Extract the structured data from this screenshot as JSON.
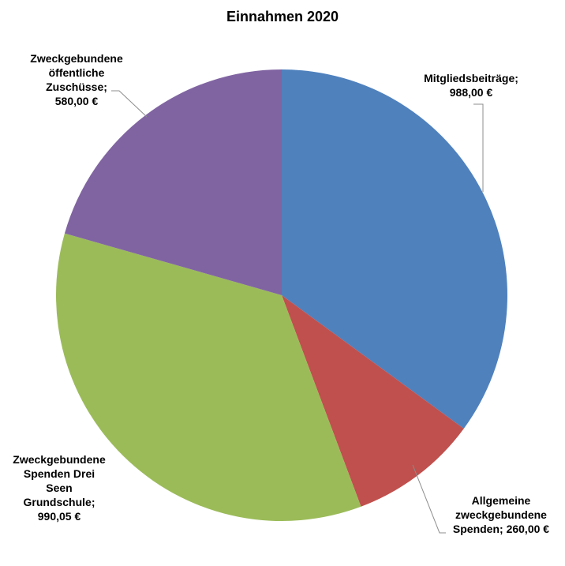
{
  "chart_data": {
    "type": "pie",
    "title": "Einnahmen 2020",
    "start_angle_deg": 0,
    "direction": "clockwise",
    "slices": [
      {
        "name": "Mitgliedsbeiträge",
        "value": 988.0,
        "value_label": "988,00 €",
        "color": "#4F81BD",
        "label_lines": [
          "Mitgliedsbeiträge;",
          "988,00 €"
        ]
      },
      {
        "name": "Allgemeine zweckgebundene Spenden",
        "value": 260.0,
        "value_label": "260,00 €",
        "color": "#C0504D",
        "label_lines": [
          "Allgemeine",
          "zweckgebundene",
          "Spenden; 260,00 €"
        ]
      },
      {
        "name": "Zweckgebundene Spenden Drei Seen Grundschule",
        "value": 990.05,
        "value_label": "990,05 €",
        "color": "#9BBB59",
        "label_lines": [
          "Zweckgebundene",
          "Spenden Drei",
          "Seen",
          "Grundschule;",
          "990,05 €"
        ]
      },
      {
        "name": "Zweckgebundene öffentliche Zuschüsse",
        "value": 580.0,
        "value_label": "580,00 €",
        "color": "#8064A2",
        "label_lines": [
          "Zweckgebundene",
          "öffentliche",
          "Zuschüsse;",
          "580,00 €"
        ]
      }
    ]
  }
}
